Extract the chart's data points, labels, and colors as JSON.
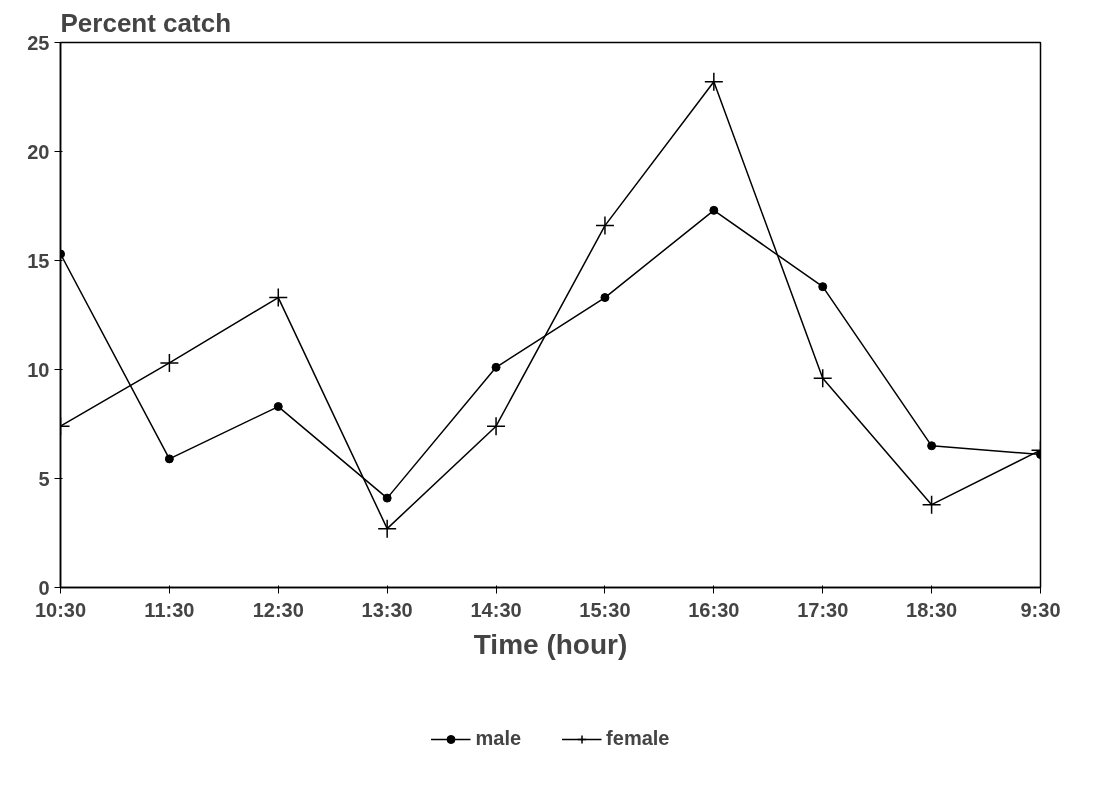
{
  "chart_data": {
    "type": "line",
    "title": "Percent catch",
    "xlabel": "Time (hour)",
    "categories": [
      "10:30",
      "11:30",
      "12:30",
      "13:30",
      "14:30",
      "15:30",
      "16:30",
      "17:30",
      "18:30",
      "9:30"
    ],
    "series": [
      {
        "name": "male",
        "color": "#000000",
        "marker": "circle",
        "values": [
          15.3,
          5.9,
          8.3,
          4.1,
          10.1,
          13.3,
          17.3,
          13.8,
          6.5,
          6.1
        ]
      },
      {
        "name": "female",
        "color": "#000000",
        "marker": "cross",
        "values": [
          7.4,
          10.3,
          13.3,
          2.7,
          7.4,
          16.6,
          23.2,
          9.6,
          3.8,
          6.3
        ]
      }
    ],
    "ylim": [
      0,
      25
    ],
    "yticks": [
      0,
      5,
      10,
      15,
      20,
      25
    ],
    "grid": false,
    "legend": "bottom",
    "line_style": "solid"
  }
}
